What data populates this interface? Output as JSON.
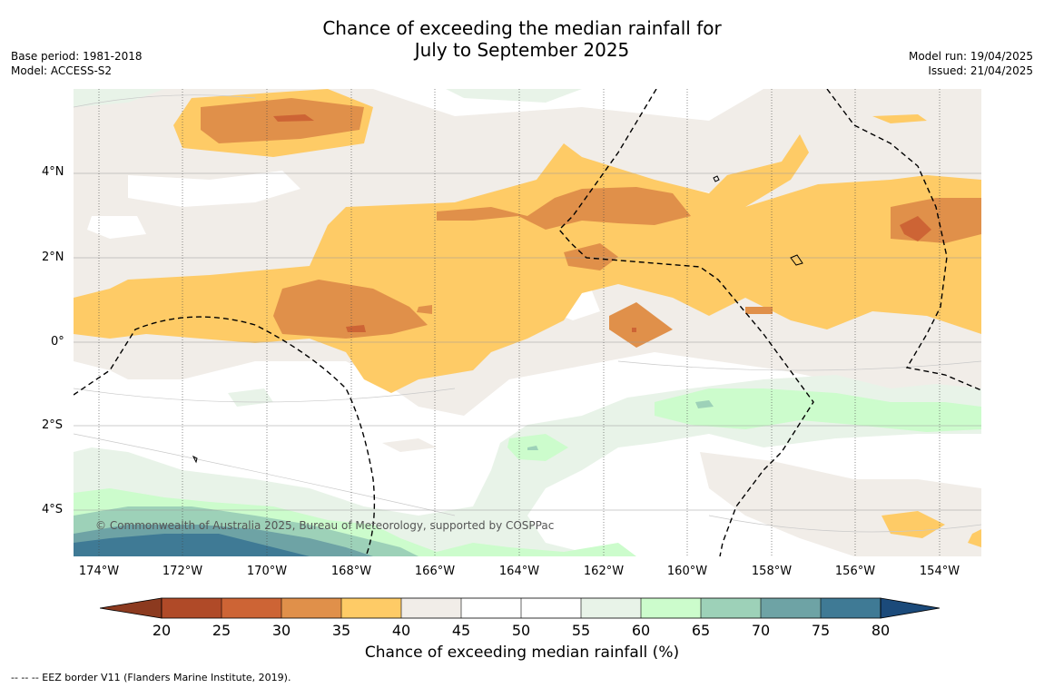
{
  "title": {
    "line1": "Chance of exceeding the median rainfall for",
    "line2": "July to September 2025"
  },
  "meta_left": {
    "base_period": "Base period: 1981-2018",
    "model": "Model: ACCESS-S2"
  },
  "meta_right": {
    "model_run": "Model run: 19/04/2025",
    "issued": "Issued: 21/04/2025"
  },
  "map": {
    "lat_labels": [
      "4°N",
      "2°N",
      "0°",
      "2°S",
      "4°S"
    ],
    "lon_labels": [
      "174°W",
      "172°W",
      "170°W",
      "168°W",
      "166°W",
      "164°W",
      "162°W",
      "160°W",
      "158°W",
      "156°W",
      "154°W"
    ],
    "copyright": "© Commonwealth of Australia 2025, Bureau of Meteorology, supported by COSPPac"
  },
  "colorbar": {
    "ticks": [
      "20",
      "25",
      "30",
      "35",
      "40",
      "45",
      "50",
      "55",
      "60",
      "65",
      "70",
      "75",
      "80"
    ],
    "label": "Chance of exceeding median rainfall (%)",
    "colors": {
      "lt20": "#8c3a1f",
      "20_25": "#b04a28",
      "25_30": "#cd6435",
      "30_35": "#e0904a",
      "35_40": "#fecb66",
      "40_45": "#f1ede8",
      "45_50": "#ffffff",
      "50_55": "#ffffff",
      "55_60": "#e8f3e8",
      "60_65": "#ccfccc",
      "65_70": "#9dd1b8",
      "70_75": "#6ea3a5",
      "75_80": "#3f7a95",
      "gt80": "#1b4a7a"
    }
  },
  "footnote": "--  --  -- EEZ border V11 (Flanders Marine Institute, 2019)."
}
